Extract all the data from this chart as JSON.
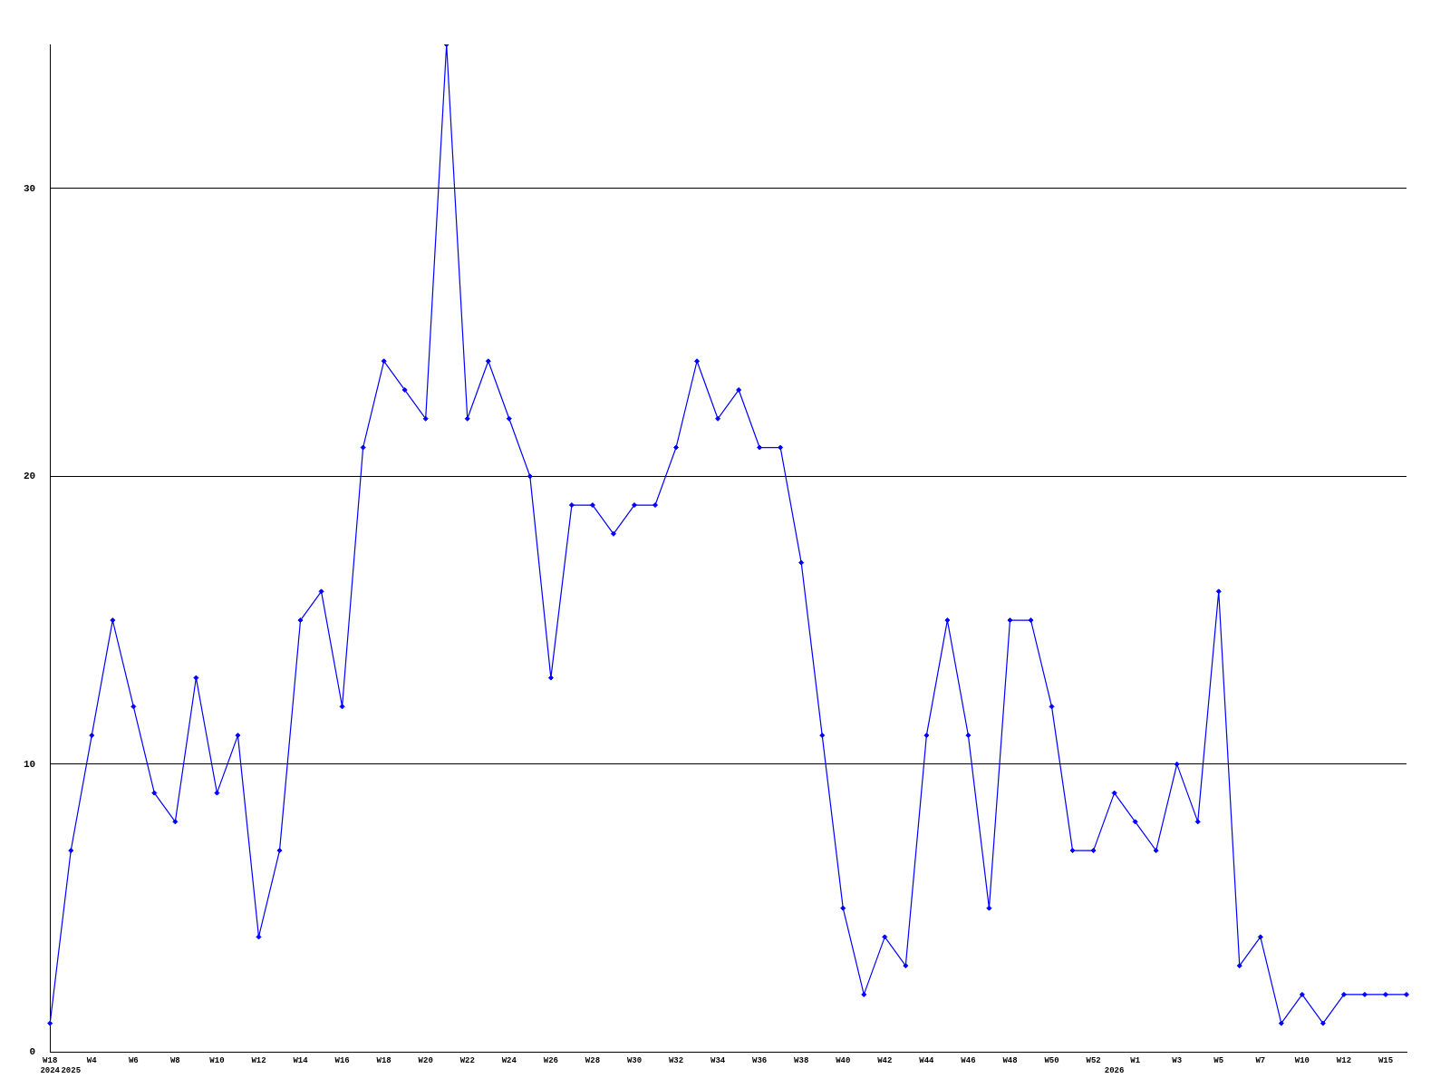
{
  "chart_data": {
    "type": "line",
    "categories": [
      "W18\n2024",
      "\n2025",
      "W4",
      null,
      "W6",
      null,
      "W8",
      null,
      "W10",
      null,
      "W12",
      null,
      "W14",
      null,
      "W16",
      null,
      "W18",
      null,
      "W20",
      null,
      "W22",
      null,
      "W24",
      null,
      "W26",
      null,
      "W28",
      null,
      "W30",
      null,
      "W32",
      null,
      "W34",
      null,
      "W36",
      null,
      "W38",
      null,
      "W40",
      null,
      "W42",
      null,
      "W44",
      null,
      "W46",
      null,
      "W48",
      null,
      "W50",
      null,
      "W52",
      "\n2026",
      "W1",
      null,
      "W3",
      null,
      "W5",
      null,
      "W7",
      null,
      "W10",
      null,
      "W12",
      null,
      "W15",
      null
    ],
    "series": [
      {
        "color": "#0000ff",
        "values": [
          1,
          7,
          11,
          15,
          12,
          9,
          8,
          13,
          9,
          11,
          4,
          7,
          15,
          16,
          12,
          21,
          24,
          23,
          22,
          35,
          22,
          24,
          22,
          20,
          13,
          19,
          19,
          18,
          19,
          19,
          21,
          24,
          22,
          23,
          21,
          21,
          17,
          11,
          5,
          2,
          4,
          3,
          11,
          15,
          11,
          5,
          15,
          15,
          12,
          7,
          7,
          9,
          8,
          7,
          10,
          8,
          16,
          3,
          4,
          1,
          2,
          1,
          2,
          2,
          2,
          2
        ]
      }
    ],
    "ylim": [
      0,
      35
    ],
    "yticks": [
      0,
      10,
      20,
      30
    ],
    "grid": "y",
    "legend": false,
    "marker": "diamond",
    "line_style": "solid"
  }
}
